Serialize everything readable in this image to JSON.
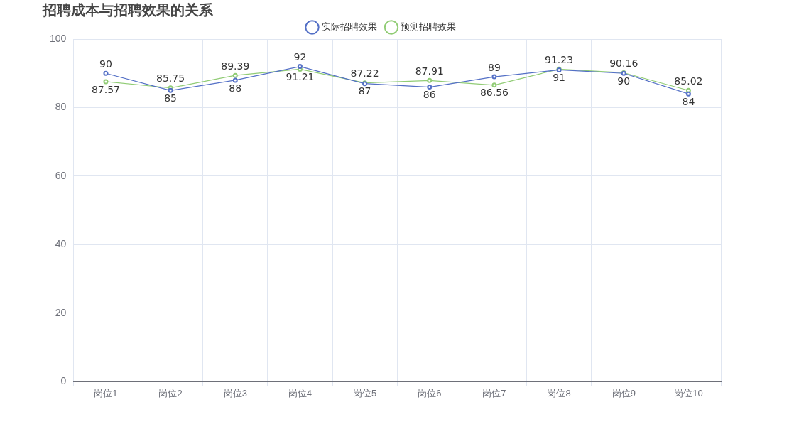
{
  "chart_data": {
    "type": "line",
    "title": "招聘成本与招聘效果的关系",
    "categories": [
      "岗位1",
      "岗位2",
      "岗位3",
      "岗位4",
      "岗位5",
      "岗位6",
      "岗位7",
      "岗位8",
      "岗位9",
      "岗位10"
    ],
    "series": [
      {
        "name": "实际招聘效果",
        "color": "#5470c6",
        "values": [
          90,
          85,
          88,
          92,
          87,
          86,
          89,
          91,
          90,
          84
        ]
      },
      {
        "name": "预测招聘效果",
        "color": "#91cc75",
        "values": [
          87.57,
          85.75,
          89.39,
          91.21,
          87.22,
          87.91,
          86.56,
          91.23,
          90.16,
          85.02
        ]
      }
    ],
    "ylim": [
      0,
      100
    ],
    "yticks": [
      0,
      20,
      40,
      60,
      80,
      100
    ],
    "grid": true,
    "legend": "top",
    "marker": "circle",
    "line_style": "solid",
    "data_labels": true
  }
}
